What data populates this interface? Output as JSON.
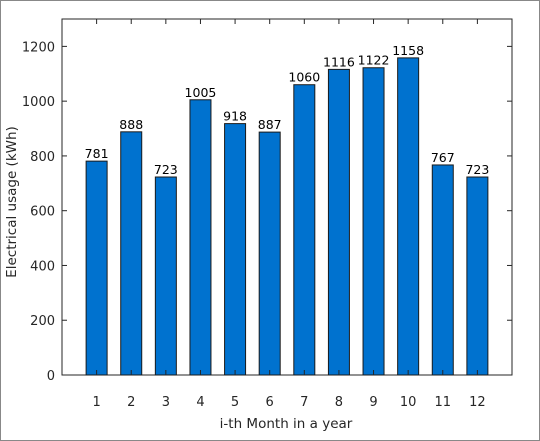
{
  "chart_data": {
    "type": "bar",
    "categories": [
      "1",
      "2",
      "3",
      "4",
      "5",
      "6",
      "7",
      "8",
      "9",
      "10",
      "11",
      "12"
    ],
    "values": [
      781,
      888,
      723,
      1005,
      918,
      887,
      1060,
      1116,
      1122,
      1158,
      767,
      723
    ],
    "data_labels": [
      "781",
      "888",
      "723",
      "1005",
      "918",
      "887",
      "1060",
      "1116",
      "1122",
      "1158",
      "767",
      "723"
    ],
    "title": "",
    "xlabel": "i-th Month in a year",
    "ylabel": "Electrical usage (kWh)",
    "ylim": [
      0,
      1300
    ],
    "yticks": [
      "0",
      "200",
      "400",
      "600",
      "800",
      "1000",
      "1200"
    ],
    "ytick_values": [
      0,
      200,
      400,
      600,
      800,
      1000,
      1200
    ],
    "grid": false,
    "legend": "none",
    "colors": {
      "bar": "#0072CF",
      "bar_edge": "#1a1a1a",
      "axis": "#262626"
    }
  }
}
